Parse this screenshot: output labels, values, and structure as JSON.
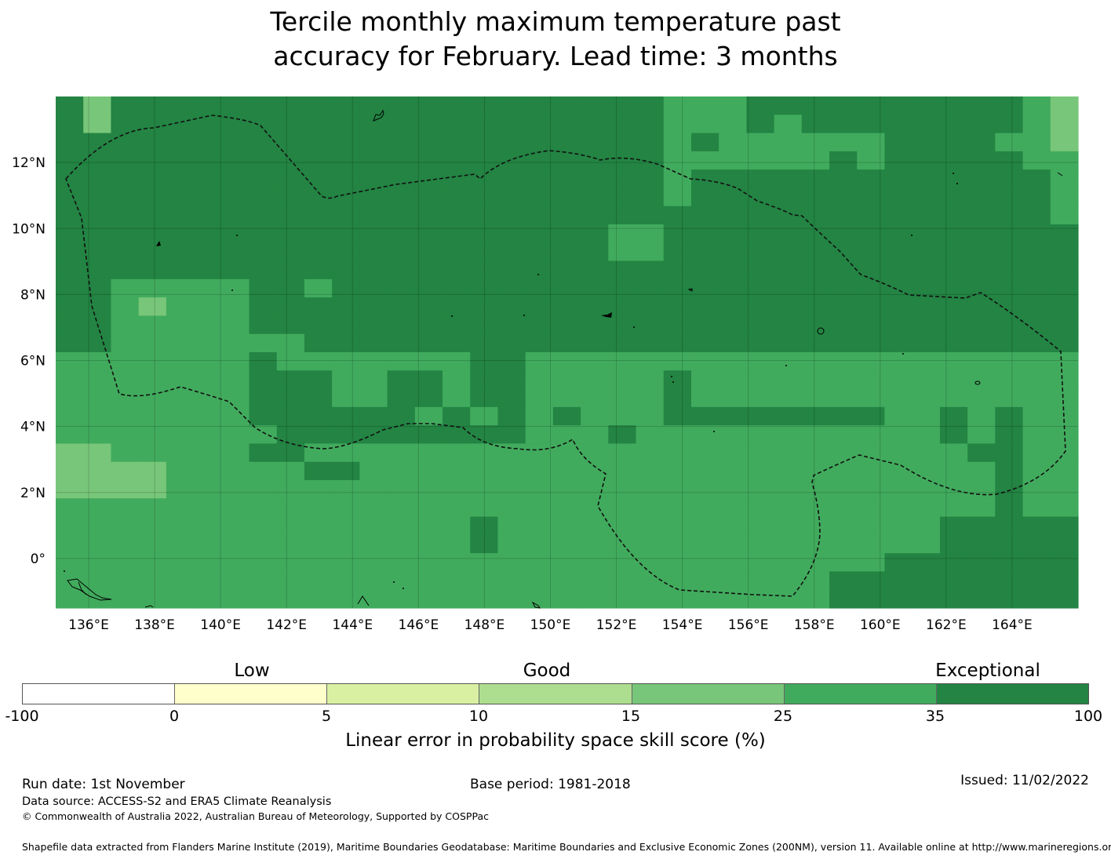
{
  "title": {
    "line1": "Tercile monthly maximum temperature past",
    "line2": "accuracy for February. Lead time: 3 months"
  },
  "map": {
    "lon_labels": [
      "136°E",
      "138°E",
      "140°E",
      "142°E",
      "144°E",
      "146°E",
      "148°E",
      "150°E",
      "152°E",
      "154°E",
      "156°E",
      "158°E",
      "160°E",
      "162°E",
      "164°E"
    ],
    "lon_values": [
      136,
      138,
      140,
      142,
      144,
      146,
      148,
      150,
      152,
      154,
      156,
      158,
      160,
      162,
      164
    ],
    "lat_labels": [
      "12°N",
      "10°N",
      "8°N",
      "6°N",
      "4°N",
      "2°N",
      "0°"
    ],
    "lat_values": [
      12,
      10,
      8,
      6,
      4,
      2,
      0
    ],
    "lon_range": [
      135,
      166
    ],
    "lat_range": [
      -1.5,
      14
    ],
    "colors": {
      "4": "#78c679",
      "5": "#41ab5d",
      "6": "#238443"
    },
    "grid_note": "rows from north (top) to south; each char is a ~0.83 degree cell class",
    "grid": [
      "6466666666666666666666555666666666654",
      "6466666666666666666666555656666666654",
      "6666666666666666666666565555556666554",
      "6666666666666666666666555555656666655",
      "6666666666666666666666566666666666665",
      "6666666666666666666666566666666666665",
      "6666666666666666666666666666666666665",
      "6666666666666666666655666666666666666",
      "6666666666666666666655666666666666666",
      "6666666666666666666666666666666666666",
      "6655555665666666666666666666666666666",
      "6654555666666666666666666666666666666",
      "6655555666666666666666666666666666666",
      "6655555556666666666666666666666666666",
      "5555555655555556655555555555555555555",
      "5555555666556656655555655555555555555",
      "5555555666556656655555655555555555555",
      "5555555666666565656555666666665565655",
      "5555555566666666655565555555555565655",
      "4455555665555555555555555555555556655",
      "4444555556655555555555555555555555655",
      "4444555555555555555555555555555555655",
      "5555555555555555555555555555555555655",
      "5555555555555556555555555555555566666",
      "5555555555555556555555555555555566666",
      "5555555555555555555555555555556666666",
      "5555555555555555555555555555666666666",
      "5555555555555555555555555555666666666"
    ]
  },
  "colorbar": {
    "headings": [
      "Low",
      "Good",
      "Exceptional"
    ],
    "ticks": [
      "-100",
      "0",
      "5",
      "10",
      "15",
      "25",
      "35",
      "100"
    ],
    "colors": [
      "#ffffff",
      "#ffffcc",
      "#d9f0a3",
      "#addd8e",
      "#78c679",
      "#41ab5d",
      "#238443"
    ],
    "label": "Linear error in probability space skill score (%)"
  },
  "footer": {
    "run_date": "Run date: 1st November",
    "base_period": "Base period: 1981-2018",
    "issued": "Issued: 11/02/2022",
    "data_source": "Data source: ACCESS-S2 and ERA5 Climate Reanalysis",
    "copyright": "© Commonwealth of Australia 2022, Australian Bureau of Meteorology, Supported by COSPPac",
    "shapefile": "Shapefile data extracted from Flanders Marine Institute (2019), Maritime Boundaries Geodatabase: Maritime Boundaries and Exclusive Economic Zones (200NM), version 11. Available online at http://www.marineregions.org/."
  }
}
